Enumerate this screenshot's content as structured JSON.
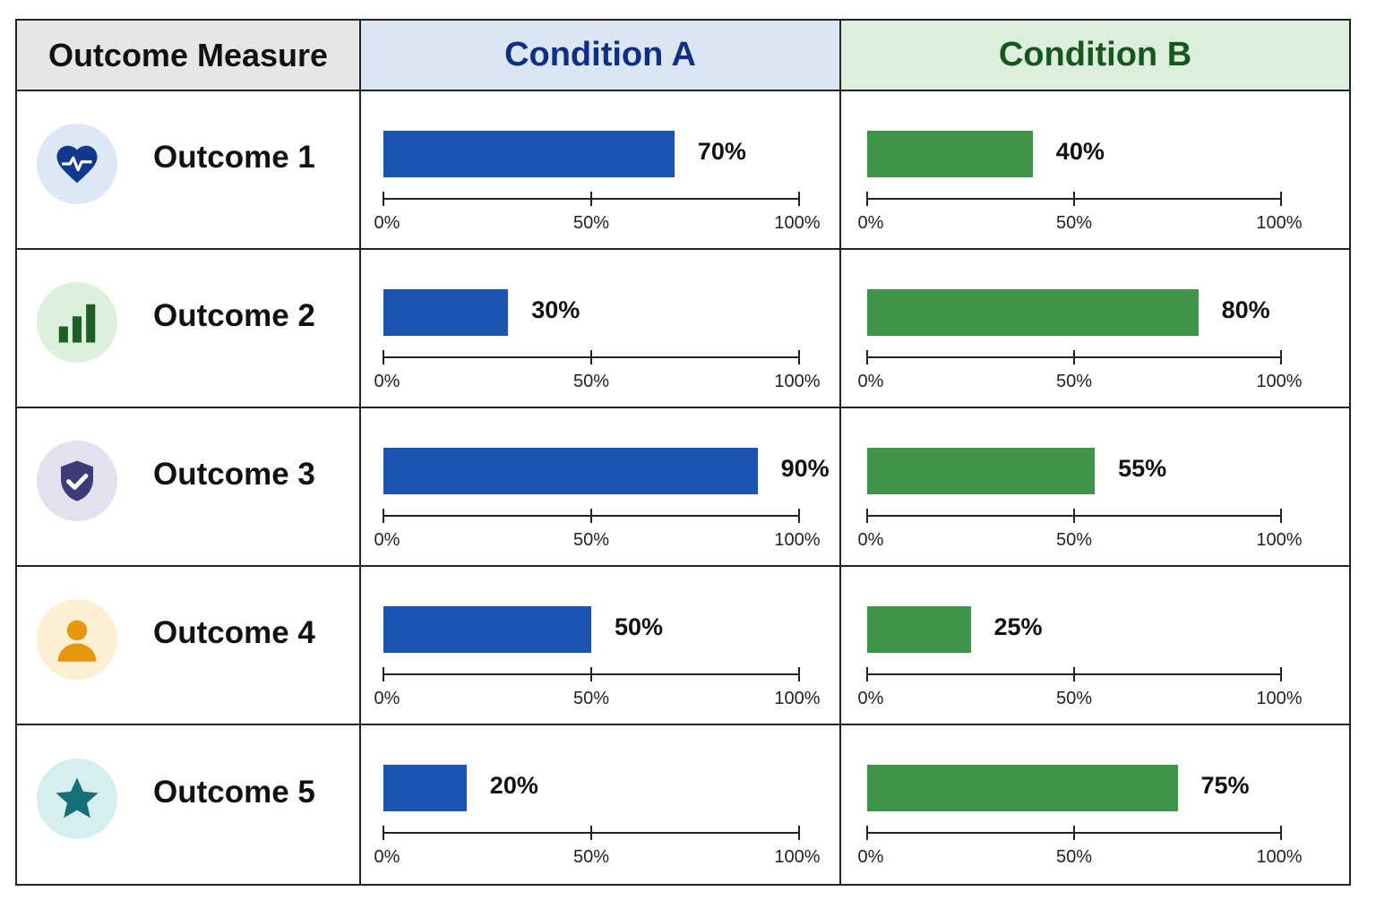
{
  "header": {
    "measure": "Outcome Measure",
    "condition_a": "Condition A",
    "condition_b": "Condition B"
  },
  "colors": {
    "condition_a_bar": "#1a55b4",
    "condition_b_bar": "#3f9649"
  },
  "axis_ticks": [
    "0%",
    "50%",
    "100%"
  ],
  "outcomes": [
    {
      "label": "Outcome 1",
      "icon": "heart-pulse-icon",
      "icon_color": "#123a8c",
      "icon_bg": "#dce8f5",
      "a_label": "70%",
      "b_label": "40%"
    },
    {
      "label": "Outcome 2",
      "icon": "bar-chart-icon",
      "icon_color": "#1e5f27",
      "icon_bg": "#dcf0dc",
      "a_label": "30%",
      "b_label": "80%"
    },
    {
      "label": "Outcome 3",
      "icon": "shield-check-icon",
      "icon_color": "#3f3a78",
      "icon_bg": "#e3e0f0",
      "a_label": "90%",
      "b_label": "55%"
    },
    {
      "label": "Outcome 4",
      "icon": "person-icon",
      "icon_color": "#e8960f",
      "icon_bg": "#fdf0d2",
      "a_label": "50%",
      "b_label": "25%"
    },
    {
      "label": "Outcome 5",
      "icon": "star-icon",
      "icon_color": "#176f78",
      "icon_bg": "#d6eef0",
      "a_label": "20%",
      "b_label": "75%"
    }
  ],
  "chart_data": {
    "type": "bar",
    "orientation": "horizontal",
    "categories": [
      "Outcome 1",
      "Outcome 2",
      "Outcome 3",
      "Outcome 4",
      "Outcome 5"
    ],
    "series": [
      {
        "name": "Condition A",
        "values": [
          70,
          30,
          90,
          50,
          20
        ]
      },
      {
        "name": "Condition B",
        "values": [
          40,
          80,
          55,
          25,
          75
        ]
      }
    ],
    "xlim": [
      0,
      100
    ],
    "ticks": [
      0,
      50,
      100
    ]
  }
}
